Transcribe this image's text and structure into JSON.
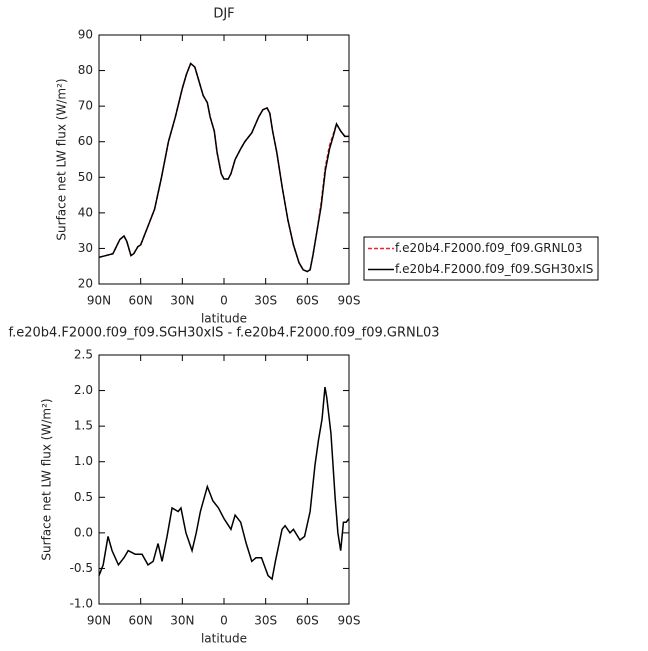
{
  "chart_data": [
    {
      "type": "line",
      "title": "DJF",
      "xlabel": "latitude",
      "ylabel": "Surface net LW flux (W/m²)",
      "x": [
        90,
        85,
        80,
        75,
        72,
        70,
        67,
        65,
        62,
        60,
        55,
        50,
        45,
        40,
        35,
        30,
        27,
        24,
        21,
        18,
        15,
        12,
        10,
        7,
        5,
        2,
        0,
        -3,
        -5,
        -8,
        -12,
        -15,
        -20,
        -25,
        -28,
        -31,
        -33,
        -35,
        -38,
        -42,
        -46,
        -50,
        -54,
        -57,
        -60,
        -62,
        -64,
        -67,
        -70,
        -73,
        -76,
        -79,
        -81,
        -84,
        -87,
        -90
      ],
      "series": [
        {
          "name": "f.e20b4.F2000.f09_f09.GRNL03",
          "color": "#e8262b",
          "dash": true,
          "values": [
            27.5,
            28,
            28.5,
            32.5,
            33.5,
            32,
            28,
            28.5,
            30.5,
            31,
            36,
            41,
            50,
            60,
            67,
            75,
            79,
            82,
            81,
            77,
            73,
            71,
            67,
            63,
            57,
            51,
            49.5,
            49.5,
            51,
            55,
            58,
            60,
            62.5,
            67,
            69,
            69.5,
            68,
            63,
            57,
            47,
            38,
            31,
            26,
            24,
            23.5,
            24,
            28,
            35,
            43,
            53,
            59,
            62.5,
            65,
            63,
            61.5,
            61.5
          ]
        },
        {
          "name": "f.e20b4.F2000.f09_f09.SGH30xIS",
          "color": "#000000",
          "dash": false,
          "values": [
            27.5,
            28,
            28.5,
            32.5,
            33.5,
            32,
            28,
            28.5,
            30.5,
            31,
            36,
            41,
            50,
            60,
            67,
            75,
            79,
            82,
            81,
            77,
            73,
            71,
            67,
            63,
            57,
            51,
            49.5,
            49.5,
            51,
            55,
            58,
            60,
            62.5,
            67,
            69,
            69.5,
            68,
            63,
            57,
            47,
            38,
            31,
            26,
            24,
            23.5,
            24,
            28,
            35,
            42,
            52,
            58,
            62,
            65,
            63,
            61.5,
            61.5
          ]
        }
      ],
      "xlim": [
        90,
        -90
      ],
      "xticks": [
        {
          "value": 90,
          "label": "90N"
        },
        {
          "value": 60,
          "label": "60N"
        },
        {
          "value": 30,
          "label": "30N"
        },
        0,
        {
          "value": -30,
          "label": "30S"
        },
        {
          "value": -60,
          "label": "60S"
        },
        {
          "value": -90,
          "label": "90S"
        }
      ],
      "ylim": [
        20,
        90
      ],
      "yticks": [
        20,
        30,
        40,
        50,
        60,
        70,
        80,
        90
      ],
      "legend": "right"
    },
    {
      "type": "line",
      "title": "f.e20b4.F2000.f09_f09.SGH30xIS - f.e20b4.F2000.f09_f09.GRNL03",
      "xlabel": "latitude",
      "ylabel": "Surface net LW flux (W/m²)",
      "x": [
        90,
        87,
        83.5,
        80.6,
        76,
        72,
        69,
        64,
        59,
        54.7,
        51,
        47.5,
        44.6,
        41,
        37.4,
        33,
        31,
        27.4,
        23,
        20,
        17,
        12,
        8,
        4,
        0,
        -5,
        -8,
        -12,
        -16,
        -20,
        -23,
        -27,
        -31.7,
        -34.6,
        -37,
        -41.8,
        -44,
        -47.5,
        -50,
        -54.7,
        -58,
        -62,
        -65.5,
        -68,
        -70.6,
        -72.7,
        -74,
        -77,
        -80,
        -82,
        -84,
        -86,
        -88,
        -90
      ],
      "values": [
        -0.6,
        -0.45,
        -0.05,
        -0.25,
        -0.45,
        -0.35,
        -0.25,
        -0.3,
        -0.3,
        -0.45,
        -0.4,
        -0.15,
        -0.4,
        -0.05,
        0.35,
        0.3,
        0.35,
        0.0,
        -0.25,
        0.0,
        0.3,
        0.65,
        0.45,
        0.35,
        0.2,
        0.05,
        0.25,
        0.15,
        -0.15,
        -0.4,
        -0.35,
        -0.35,
        -0.6,
        -0.65,
        -0.4,
        0.05,
        0.1,
        0.0,
        0.05,
        -0.1,
        -0.05,
        0.3,
        0.95,
        1.3,
        1.6,
        2.05,
        1.9,
        1.4,
        0.5,
        0.0,
        -0.25,
        0.15,
        0.15,
        0.2
      ],
      "color": "#000000",
      "xlim": [
        90,
        -90
      ],
      "xticks": [
        {
          "value": 90,
          "label": "90N"
        },
        {
          "value": 60,
          "label": "60N"
        },
        {
          "value": 30,
          "label": "30N"
        },
        0,
        {
          "value": -30,
          "label": "30S"
        },
        {
          "value": -60,
          "label": "60S"
        },
        {
          "value": -90,
          "label": "90S"
        }
      ],
      "ylim": [
        -1.0,
        2.5
      ],
      "yticks": [
        {
          "value": -1.0,
          "label": "-1.0"
        },
        {
          "value": -0.5,
          "label": "-0.5"
        },
        {
          "value": 0.0,
          "label": "0.0"
        },
        0.5,
        {
          "value": 1.0,
          "label": "1.0"
        },
        1.5,
        {
          "value": 2.0,
          "label": "2.0"
        },
        2.5
      ]
    }
  ]
}
